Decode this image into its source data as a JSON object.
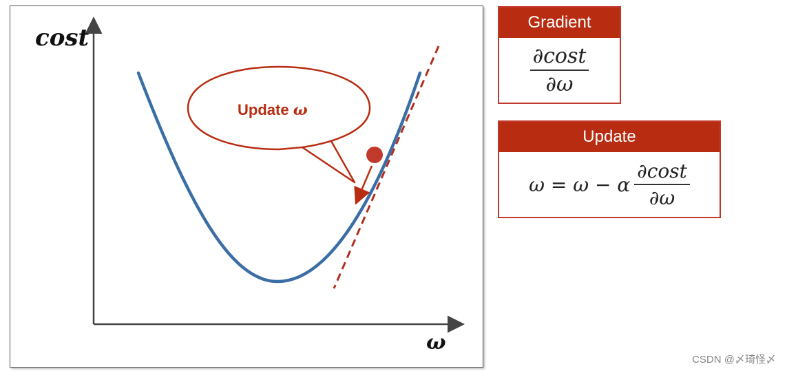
{
  "figure": {
    "y_axis_label": "cost",
    "x_axis_label": "ω",
    "callout_prefix": "Update ",
    "callout_symbol": "ω"
  },
  "gradient_card": {
    "title": "Gradient",
    "numerator": "∂cost",
    "denominator": "∂ω"
  },
  "update_card": {
    "title": "Update",
    "lhs": "ω = ω − α",
    "numerator": "∂cost",
    "denominator": "∂ω"
  },
  "watermark": "CSDN @〆琦怪〆",
  "colors": {
    "curve": "#3a6ea5",
    "accent_red": "#b82d12",
    "tangent": "#b03020"
  }
}
